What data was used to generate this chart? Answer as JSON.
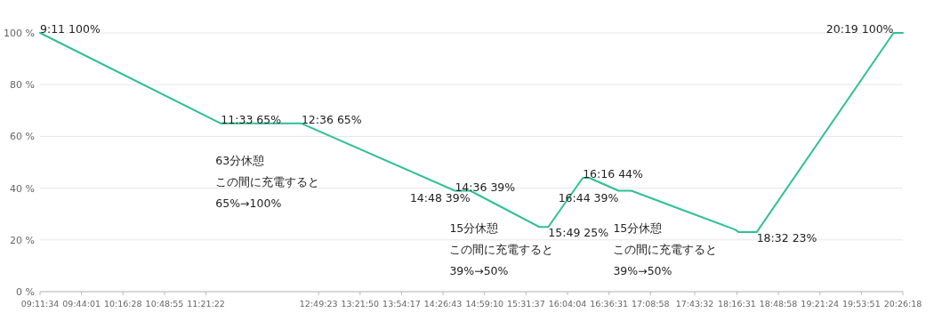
{
  "chart_data": {
    "type": "line",
    "color": "#2ec18e",
    "grid": "y",
    "x": [
      9.1928,
      11.55,
      12.6,
      14.6,
      14.8,
      15.7,
      15.8167,
      16.2667,
      16.35,
      16.7333,
      16.9,
      18.25,
      18.3,
      18.5333,
      20.3167,
      20.4383
    ],
    "values": [
      100,
      65,
      65,
      39,
      39,
      25,
      25,
      44,
      44,
      39,
      39,
      24,
      23,
      23,
      100,
      100
    ],
    "xlim": [
      9.1928,
      20.4383
    ],
    "xticks": [
      {
        "value": 9.1928,
        "label": "09:11:34"
      },
      {
        "value": 9.7336,
        "label": "09:44:01"
      },
      {
        "value": 10.2744,
        "label": "10:16:28"
      },
      {
        "value": 10.8153,
        "label": "10:48:55"
      },
      {
        "value": 11.3561,
        "label": "11:21:22"
      },
      {
        "value": 12.8231,
        "label": "12:49:23"
      },
      {
        "value": 13.3639,
        "label": "13:21:50"
      },
      {
        "value": 13.9047,
        "label": "13:54:17"
      },
      {
        "value": 14.4453,
        "label": "14:26:43"
      },
      {
        "value": 14.9861,
        "label": "14:59:10"
      },
      {
        "value": 15.5269,
        "label": "15:31:37"
      },
      {
        "value": 16.0678,
        "label": "16:04:04"
      },
      {
        "value": 16.6086,
        "label": "16:36:31"
      },
      {
        "value": 17.1494,
        "label": "17:08:58"
      },
      {
        "value": 17.7256,
        "label": "17:43:32"
      },
      {
        "value": 18.2753,
        "label": "18:16:31"
      },
      {
        "value": 18.8161,
        "label": "18:48:58"
      },
      {
        "value": 19.3567,
        "label": "19:21:24"
      },
      {
        "value": 19.8975,
        "label": "19:53:51"
      },
      {
        "value": 20.4383,
        "label": "20:26:18"
      }
    ],
    "ylim": [
      0,
      100
    ],
    "yticks": [
      {
        "value": 0,
        "label": "0 %"
      },
      {
        "value": 20,
        "label": "20 %"
      },
      {
        "value": 40,
        "label": "40 %"
      },
      {
        "value": 60,
        "label": "60 %"
      },
      {
        "value": 80,
        "label": "80 %"
      },
      {
        "value": 100,
        "label": "100 %"
      }
    ],
    "annotations": [
      {
        "text": "9:11 100%",
        "x": 9.1928,
        "y": 100
      },
      {
        "text": "11:33 65%",
        "x": 11.55,
        "y": 65
      },
      "63分休憩",
      "この間に充電すると",
      "65%→100%",
      {
        "text": "12:36 65%",
        "x": 12.6,
        "y": 65
      },
      {
        "text": "14:36 39%",
        "x": 14.6,
        "y": 39
      },
      "15分休憩",
      "この間に充電すると",
      "39%→50%",
      {
        "text": "14:48 39%",
        "x": 14.8,
        "y": 39
      },
      {
        "text": "15:49 25%",
        "x": 15.8167,
        "y": 25
      },
      {
        "text": "16:16 44%",
        "x": 16.2667,
        "y": 44
      },
      {
        "text": "16:44 39%",
        "x": 16.7333,
        "y": 39
      },
      "15分休憩",
      "この間に充電すると",
      "39%→50%",
      {
        "text": "18:32 23%",
        "x": 18.5333,
        "y": 23
      },
      {
        "text": "20:19 100%",
        "x": 20.3167,
        "y": 100
      }
    ]
  }
}
